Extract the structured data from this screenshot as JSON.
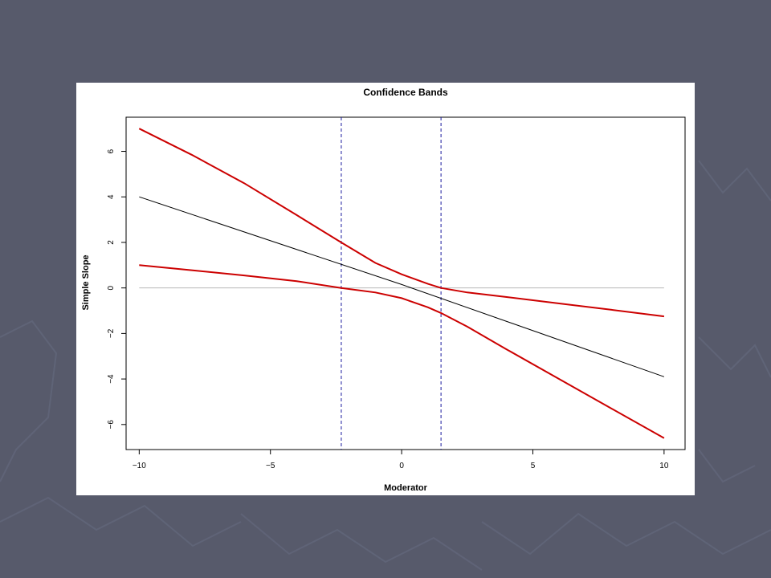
{
  "slide": {
    "background_color": "#575a6b"
  },
  "chart_data": {
    "type": "line",
    "title": "Confidence Bands",
    "xlabel": "Moderator",
    "ylabel": "Simple Slope",
    "xlim": [
      -10.5,
      10.8
    ],
    "ylim": [
      -7.1,
      7.5
    ],
    "x_ticks": [
      -10,
      -5,
      0,
      5,
      10
    ],
    "x_tick_labels": [
      "−10",
      "−5",
      "0",
      "5",
      "10"
    ],
    "y_ticks": [
      -6,
      -4,
      -2,
      0,
      2,
      4,
      6
    ],
    "y_tick_labels": [
      "−6",
      "−4",
      "−2",
      "0",
      "2",
      "4",
      "6"
    ],
    "grid": false,
    "reference_lines": {
      "horizontal_zero": {
        "y": 0,
        "color": "#b8b8b8"
      },
      "vertical_bounds": [
        {
          "x": -2.3,
          "color": "#1a1a9e",
          "style": "dashed"
        },
        {
          "x": 1.5,
          "color": "#1a1a9e",
          "style": "dashed"
        }
      ]
    },
    "series": [
      {
        "role": "simple-slope",
        "color": "#000000",
        "x": [
          -10,
          0,
          10
        ],
        "y": [
          4,
          0.15,
          -3.9
        ]
      },
      {
        "role": "upper-confidence-band",
        "color": "#cc0000",
        "x": [
          -10,
          -8,
          -6,
          -4,
          -2.3,
          -1,
          0,
          1,
          1.5,
          2.5,
          4,
          6,
          8,
          10
        ],
        "y": [
          7.0,
          5.85,
          4.6,
          3.2,
          2.0,
          1.1,
          0.6,
          0.18,
          0.0,
          -0.2,
          -0.4,
          -0.68,
          -0.96,
          -1.25
        ]
      },
      {
        "role": "lower-confidence-band",
        "color": "#cc0000",
        "x": [
          -10,
          -8,
          -6,
          -4,
          -2.3,
          -1,
          0,
          1,
          1.5,
          2.5,
          4,
          6,
          8,
          10
        ],
        "y": [
          1.0,
          0.78,
          0.55,
          0.3,
          0.0,
          -0.2,
          -0.45,
          -0.85,
          -1.1,
          -1.7,
          -2.7,
          -4.0,
          -5.3,
          -6.6
        ]
      }
    ]
  }
}
